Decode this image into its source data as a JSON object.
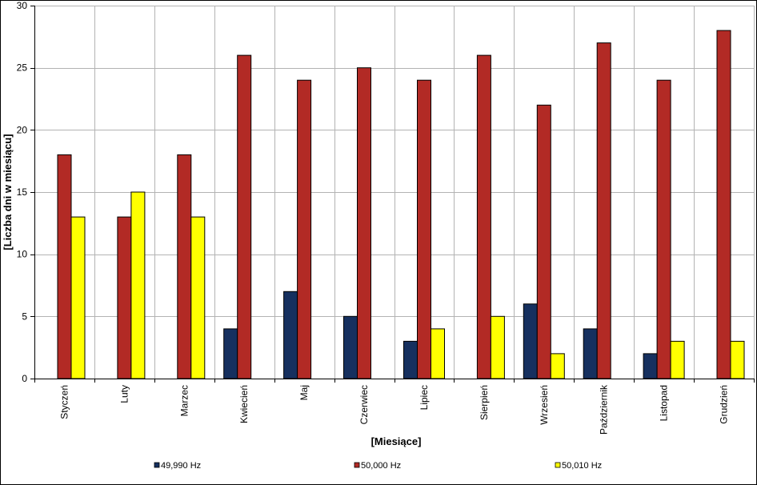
{
  "chart_data": {
    "type": "bar",
    "xlabel": "[Miesiące]",
    "ylabel": "[Liczba dni w miesiącu]",
    "ylim": [
      0,
      30
    ],
    "yticks": [
      0,
      5,
      10,
      15,
      20,
      25,
      30
    ],
    "grid": true,
    "legend_position": "bottom",
    "categories": [
      "Styczeń",
      "Luty",
      "Marzec",
      "Kwiecień",
      "Maj",
      "Czerwiec",
      "Lipiec",
      "Sierpień",
      "Wrzesień",
      "Październik",
      "Listopad",
      "Grudzień"
    ],
    "series": [
      {
        "name": "49,990 Hz",
        "color": "#16305f",
        "values": [
          0,
          0,
          0,
          4,
          7,
          5,
          3,
          0,
          6,
          4,
          2,
          0
        ]
      },
      {
        "name": "50,000 Hz",
        "color": "#b22a25",
        "values": [
          18,
          13,
          18,
          26,
          24,
          25,
          24,
          26,
          22,
          27,
          24,
          28
        ]
      },
      {
        "name": "50,010 Hz",
        "color": "#ffff00",
        "values": [
          13,
          15,
          13,
          0,
          0,
          0,
          4,
          5,
          2,
          0,
          3,
          3
        ]
      }
    ]
  }
}
